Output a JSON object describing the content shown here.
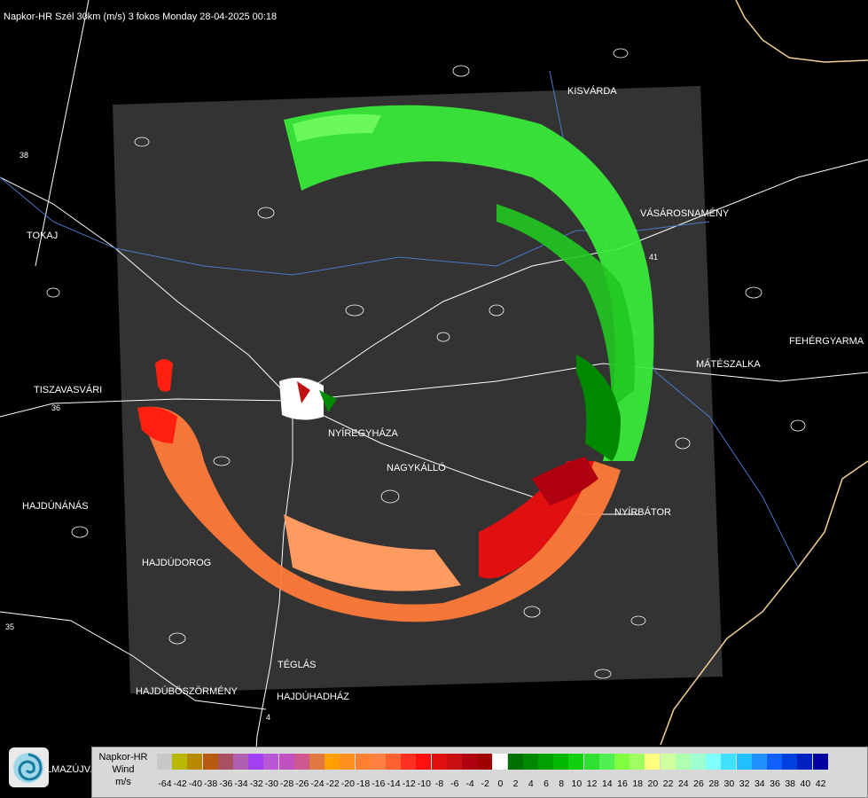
{
  "title": "Napkor-HR Szél 30km (m/s) 3 fokos Monday 28-04-2025 00:18",
  "cities": [
    {
      "key": "kisvarda",
      "name": "KISVÁRDA"
    },
    {
      "key": "tokaj",
      "name": "TOKAJ"
    },
    {
      "key": "vasarosnameny",
      "name": "VÁSÁROSNAMÉNY"
    },
    {
      "key": "fehergyarmat",
      "name": "FEHÉRGYARMA"
    },
    {
      "key": "mateszalka",
      "name": "MÁTÉSZALKA"
    },
    {
      "key": "tiszavasvari",
      "name": "TISZAVASVÁRI"
    },
    {
      "key": "nyiregyhaza",
      "name": "NYÍREGYHÁZA"
    },
    {
      "key": "nagykallo",
      "name": "NAGYKÁLLÓ"
    },
    {
      "key": "hajdunanas",
      "name": "HAJDÚNÁNÁS"
    },
    {
      "key": "nyirbator",
      "name": "NYÍRBÁTOR"
    },
    {
      "key": "hajdudorog",
      "name": "HAJDÚDOROG"
    },
    {
      "key": "teglas",
      "name": "TÉGLÁS"
    },
    {
      "key": "hajduboszormeny",
      "name": "HAJDÚBÖSZÖRMÉNY"
    },
    {
      "key": "hajduhadhaz",
      "name": "HAJDÚHADHÁZ"
    }
  ],
  "road_labels": [
    "36",
    "38",
    "41",
    "35",
    "4"
  ],
  "legend": {
    "line1": "Napkor-HR",
    "line2": "Wind",
    "line3": "m/s",
    "values": [
      "-64",
      "-42",
      "-40",
      "-38",
      "-36",
      "-34",
      "-32",
      "-30",
      "-28",
      "-26",
      "-24",
      "-22",
      "-20",
      "-18",
      "-16",
      "-14",
      "-12",
      "-10",
      "-8",
      "-6",
      "-4",
      "-2",
      "0",
      "2",
      "4",
      "6",
      "8",
      "10",
      "12",
      "14",
      "16",
      "18",
      "20",
      "22",
      "24",
      "26",
      "28",
      "30",
      "32",
      "34",
      "36",
      "38",
      "40",
      "42"
    ],
    "colors": [
      "#c8c8c8",
      "#b8b800",
      "#b88a00",
      "#b85a10",
      "#a85060",
      "#b060b0",
      "#a040f0",
      "#b858d8",
      "#c050c0",
      "#d05890",
      "#e07840",
      "#ffa000",
      "#ff9020",
      "#ff8030",
      "#ff8040",
      "#ff6030",
      "#ff3020",
      "#ff1010",
      "#e01010",
      "#c81010",
      "#b00010",
      "#a00000",
      "#ffffff",
      "#007000",
      "#008800",
      "#00a000",
      "#00b800",
      "#10d010",
      "#30e030",
      "#50f050",
      "#80ff40",
      "#a0ff60",
      "#ffff80",
      "#d0ffa0",
      "#b0ffb0",
      "#a0ffd0",
      "#80ffff",
      "#40e0ff",
      "#20c0ff",
      "#2090ff",
      "#1060ff",
      "#0040e0",
      "#0020c0",
      "#0000a0"
    ]
  },
  "logo_text": "LMAZÚJVÁR"
}
